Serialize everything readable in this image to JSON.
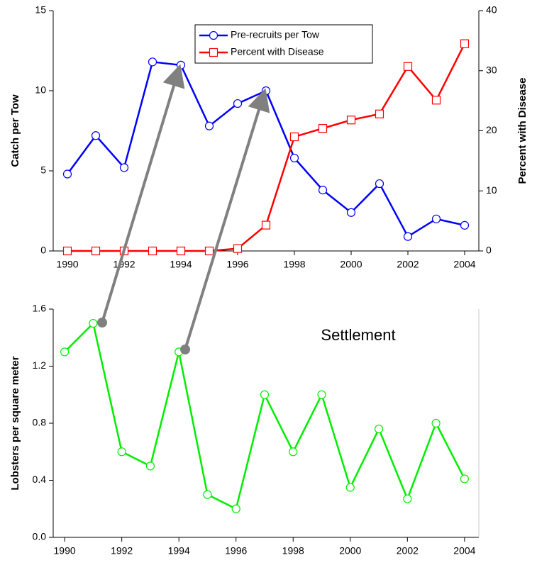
{
  "chart_data": [
    {
      "type": "line",
      "x": [
        1990,
        1991,
        1992,
        1993,
        1994,
        1995,
        1996,
        1997,
        1998,
        1999,
        2000,
        2001,
        2002,
        2003,
        2004
      ],
      "xlim": [
        1989.5,
        2004.5
      ],
      "xticks": [
        1990,
        1992,
        1994,
        1996,
        1998,
        2000,
        2002,
        2004
      ],
      "ylabel": "Catch per Tow",
      "ylim": [
        0,
        15
      ],
      "yticks": [
        0,
        5,
        10,
        15
      ],
      "y2label": "Percent with Disease",
      "y2lim": [
        0,
        40
      ],
      "y2ticks": [
        0,
        10,
        20,
        30,
        40
      ],
      "legend": "top-center",
      "series": [
        {
          "name": "Pre-recruits per Tow",
          "color": "#0000ff",
          "marker": "circle",
          "values": [
            4.8,
            7.2,
            5.2,
            11.8,
            11.6,
            7.8,
            9.2,
            10.0,
            5.8,
            3.8,
            2.4,
            4.2,
            0.9,
            2.0,
            1.6
          ]
        },
        {
          "name": "Percent with Disease",
          "color": "#ff0000",
          "marker": "square",
          "axis": "y2",
          "values": [
            0,
            0,
            0,
            0,
            0,
            0,
            0.4,
            4.3,
            19,
            20.4,
            21.8,
            22.8,
            30.7,
            25.1,
            34.5
          ]
        }
      ]
    },
    {
      "type": "line",
      "x": [
        1990,
        1991,
        1992,
        1993,
        1994,
        1995,
        1996,
        1997,
        1998,
        1999,
        2000,
        2001,
        2002,
        2003,
        2004
      ],
      "xlim": [
        1989.6,
        2004.5
      ],
      "xticks": [
        1990,
        1992,
        1994,
        1996,
        1998,
        2000,
        2002,
        2004
      ],
      "ylabel": "Lobsters per square meter",
      "ylim": [
        0,
        1.6
      ],
      "yticks": [
        {
          "value": 0,
          "label": "0.0"
        },
        0.4,
        0.8,
        1.2,
        1.6
      ],
      "annotation": "Settlement",
      "series": [
        {
          "color": "#00ee00",
          "marker": "circle",
          "values": [
            1.3,
            1.5,
            0.6,
            0.5,
            1.3,
            0.3,
            0.2,
            1.0,
            0.6,
            1.0,
            0.35,
            0.76,
            0.27,
            0.8,
            0.41
          ]
        }
      ]
    }
  ]
}
